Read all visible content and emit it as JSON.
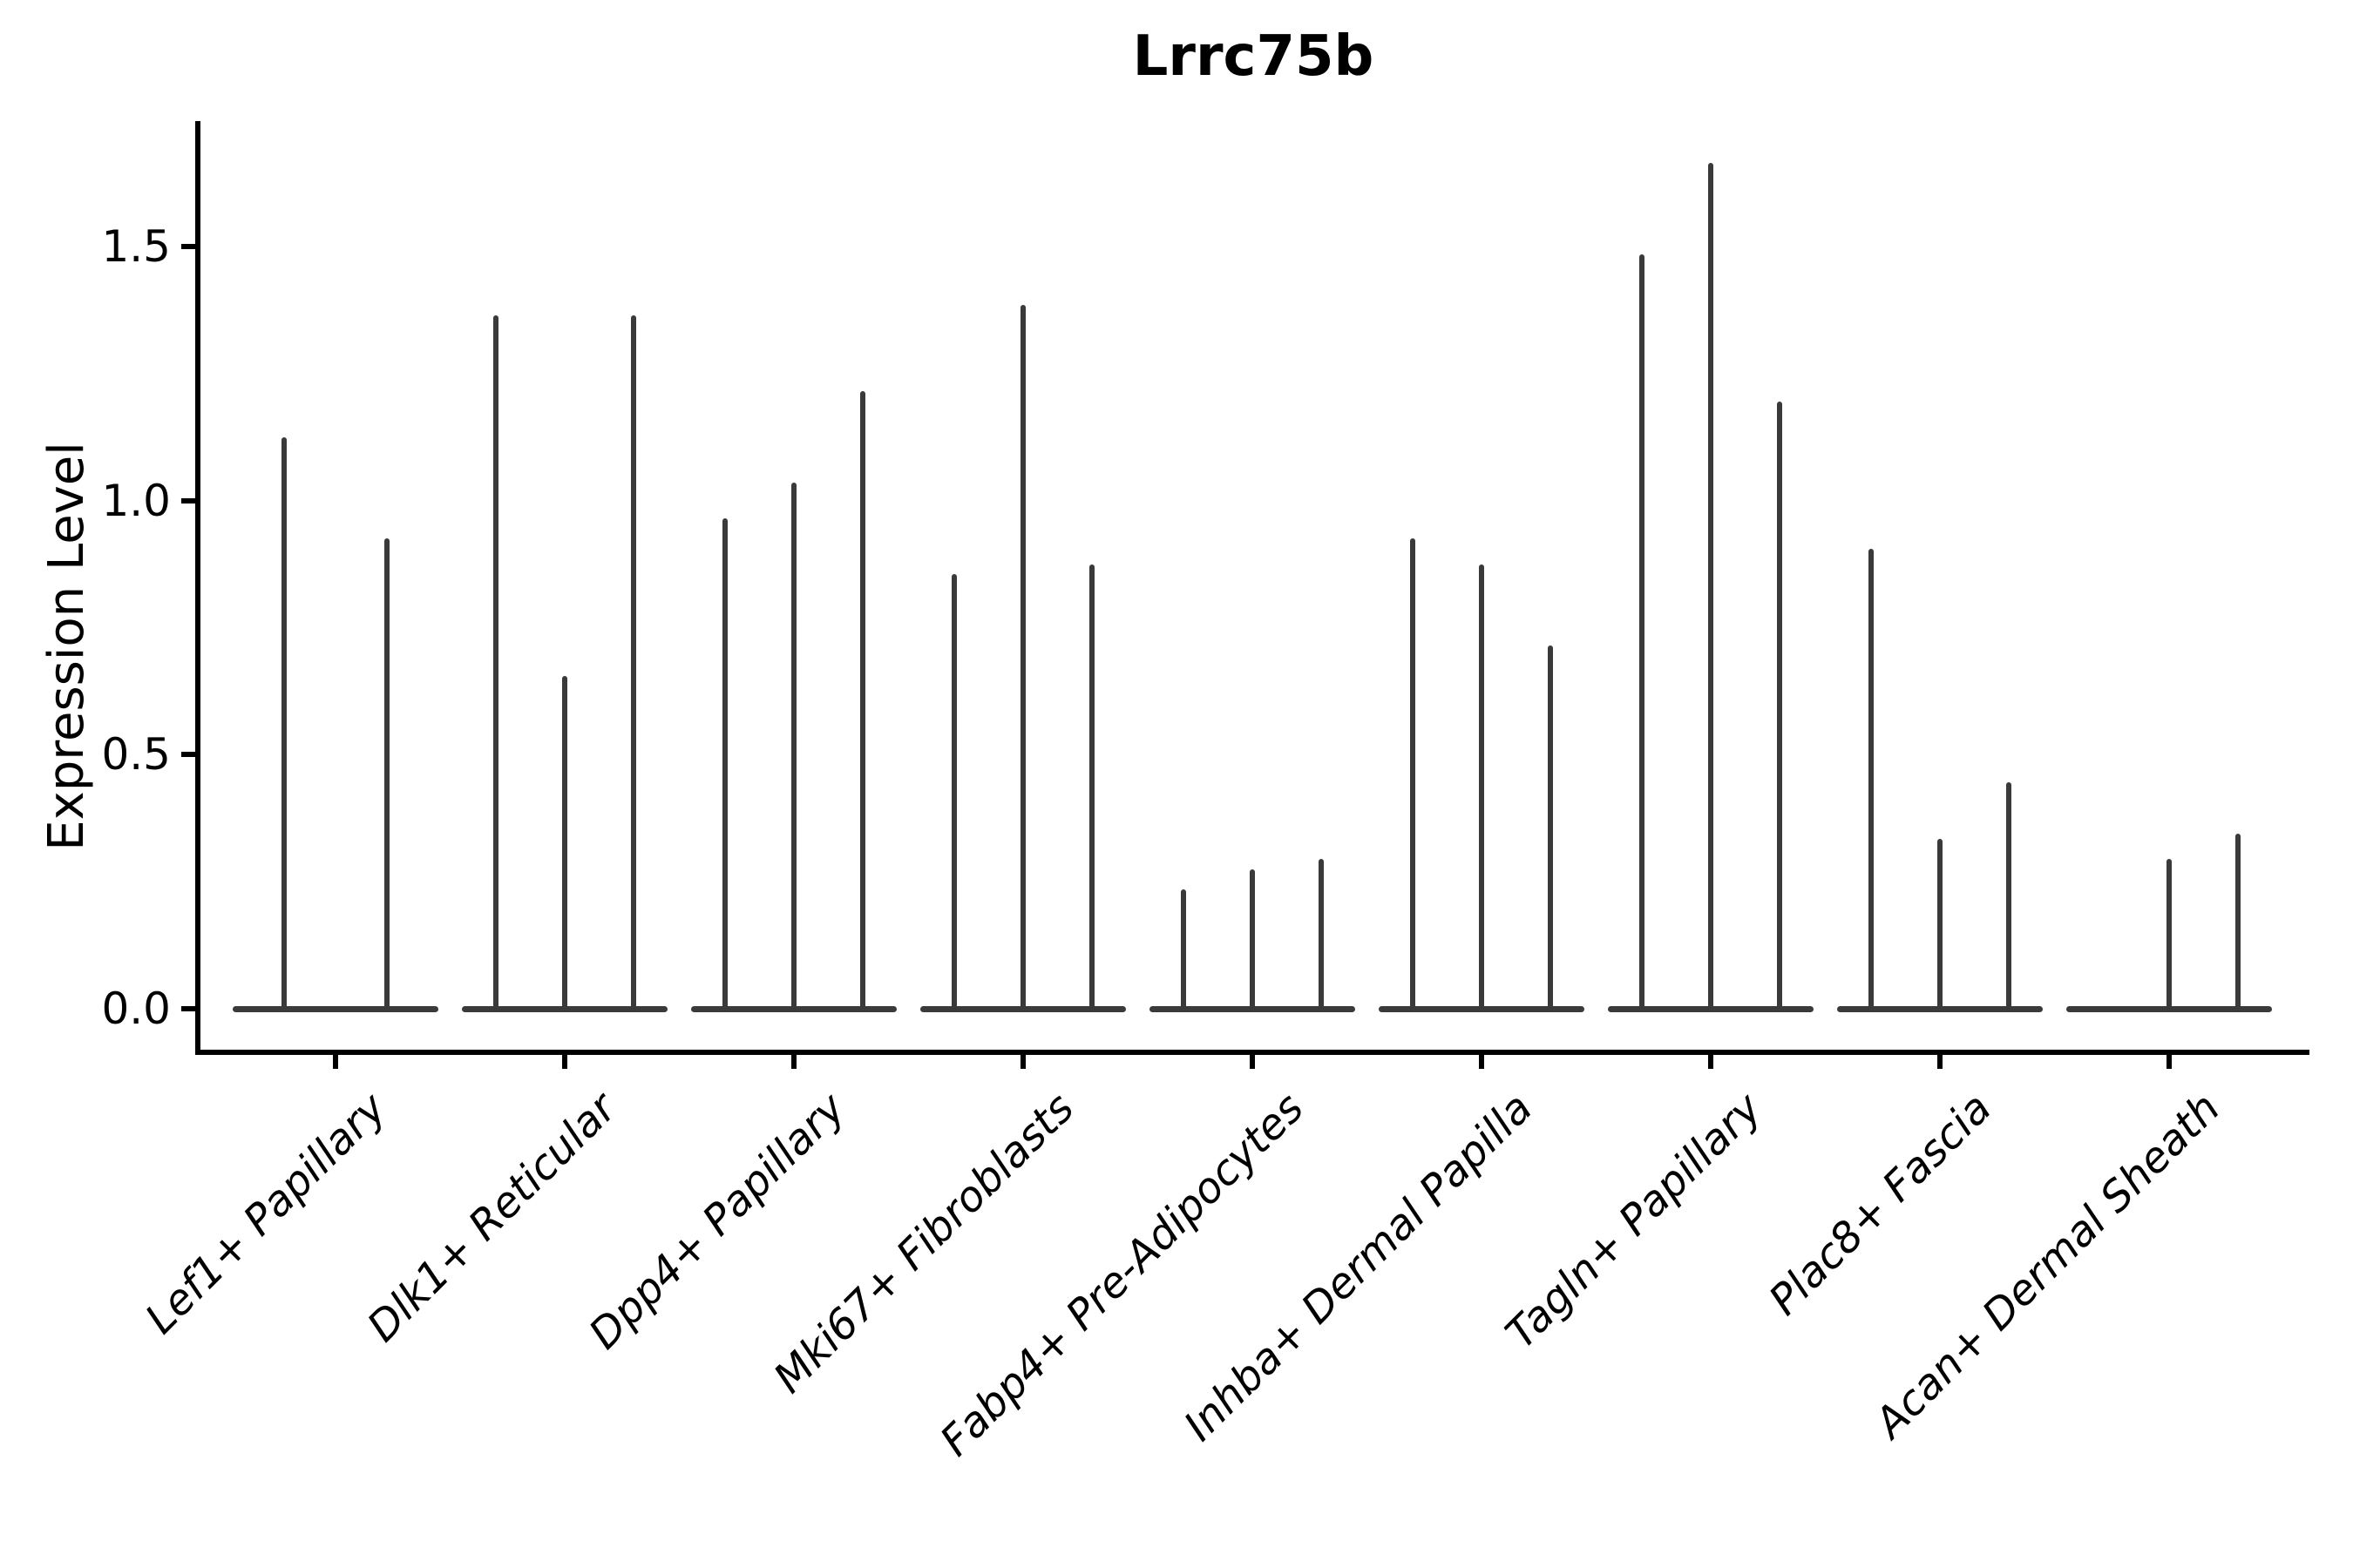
{
  "title": "Lrrc75b",
  "ylabel": "Expression Level",
  "colors": {
    "violin": "#3a3a3a",
    "axis": "#000000",
    "background": "#ffffff",
    "text": "#000000"
  },
  "chart_data": {
    "type": "violin",
    "title": "Lrrc75b",
    "xlabel": "",
    "ylabel": "Expression Level",
    "ylim": [
      -0.09,
      1.74
    ],
    "yticks": [
      {
        "value": 0.0,
        "label": "0.0"
      },
      {
        "value": 0.5,
        "label": "0.5"
      },
      {
        "value": 1.0,
        "label": "1.0"
      },
      {
        "value": 1.5,
        "label": "1.5"
      }
    ],
    "grid": false,
    "legend": "none",
    "violin_style": "each violin collapses to a flat base at y=0 plus a thin vertical spike reaching its maximum expression value",
    "categories": [
      "Lef1+ Papillary",
      "Dlk1+ Reticular",
      "Dpp4+ Papillary",
      "Mki67+ Fibroblasts",
      "Fabp4+ Pre-Adipocytes",
      "Inhba+ Dermal Papilla",
      "Tagln+ Papillary",
      "Plac8+ Fascia",
      "Acan+ Dermal Sheath"
    ],
    "groups": [
      {
        "category": "Lef1+ Papillary",
        "violin_max_values": [
          1.12,
          0.92
        ]
      },
      {
        "category": "Dlk1+ Reticular",
        "violin_max_values": [
          1.36,
          0.65,
          1.36
        ]
      },
      {
        "category": "Dpp4+ Papillary",
        "violin_max_values": [
          0.96,
          1.03,
          1.21
        ]
      },
      {
        "category": "Mki67+ Fibroblasts",
        "violin_max_values": [
          0.85,
          1.38,
          0.87
        ]
      },
      {
        "category": "Fabp4+ Pre-Adipocytes",
        "violin_max_values": [
          0.23,
          0.27,
          0.29
        ]
      },
      {
        "category": "Inhba+ Dermal Papilla",
        "violin_max_values": [
          0.92,
          0.87,
          0.71
        ]
      },
      {
        "category": "Tagln+ Papillary",
        "violin_max_values": [
          1.48,
          1.66,
          1.19
        ]
      },
      {
        "category": "Plac8+ Fascia",
        "violin_max_values": [
          0.9,
          0.33,
          0.44
        ]
      },
      {
        "category": "Acan+ Dermal Sheath",
        "violin_max_values": [
          0.0,
          0.29,
          0.34
        ]
      }
    ]
  }
}
